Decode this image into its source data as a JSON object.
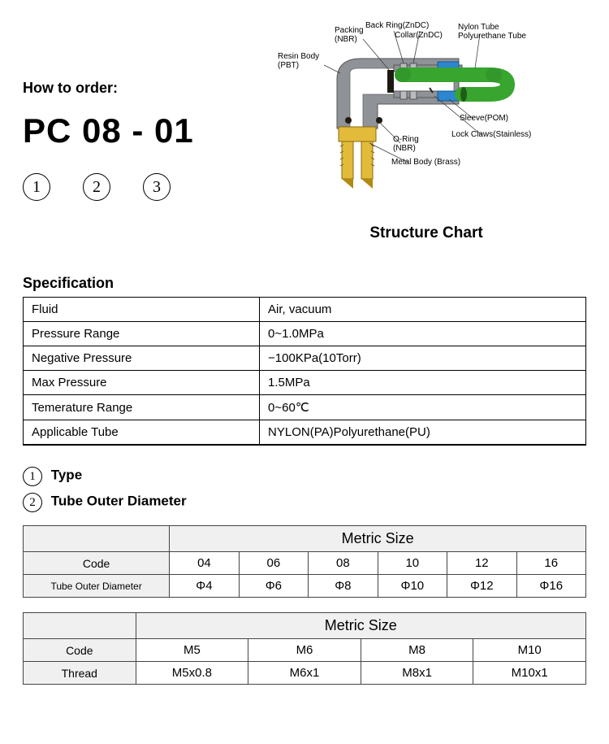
{
  "header": {
    "how_to_order": "How to order:",
    "order_code": "PC 08 - 01",
    "circle_1": "1",
    "circle_2": "2",
    "circle_3": "3"
  },
  "structure": {
    "caption": "Structure Chart",
    "labels": {
      "resin_body": "Resin Body\n(PBT)",
      "packing": "Packing\n(NBR)",
      "back_ring": "Back Ring(ZnDC)",
      "collar": "Collar(ZnDC)",
      "nylon_tube": "Nylon Tube\nPolyurethane Tube",
      "sleeve": "Sleeve(POM)",
      "lock_claws": "Lock Claws(Stainless)",
      "o_ring": "O-Ring\n(NBR)",
      "metal_body": "Metal Body (Brass)"
    },
    "colors": {
      "body_grey": "#8f9297",
      "brass": "#e2bb3a",
      "brass_dark": "#b08a12",
      "tube_green": "#37a52e",
      "tube_green_dark": "#2e8026",
      "sleeve_blue": "#2c86d0",
      "oring": "#201a14",
      "label_line": "#404040"
    }
  },
  "spec": {
    "title": "Specification",
    "rows": [
      {
        "k": "Fluid",
        "v": "Air, vacuum"
      },
      {
        "k": "Pressure Range",
        "v": "0~1.0MPa"
      },
      {
        "k": "Negative Pressure",
        "v": "−100KPa(10Torr)"
      },
      {
        "k": "Max Pressure",
        "v": "1.5MPa"
      },
      {
        "k": "Temerature Range",
        "v": "0~60℃"
      },
      {
        "k": "Applicable Tube",
        "v": "NYLON(PA)Polyurethane(PU)"
      }
    ]
  },
  "type_section": {
    "num": "1",
    "title": "Type"
  },
  "diam_section": {
    "num": "2",
    "title": "Tube Outer Diameter"
  },
  "table1": {
    "group": "Metric Size",
    "row_label_code": "Code",
    "row_label_diam": "Tube Outer Diameter",
    "codes": [
      "04",
      "06",
      "08",
      "10",
      "12",
      "16"
    ],
    "diams": [
      "Φ4",
      "Φ6",
      "Φ8",
      "Φ10",
      "Φ12",
      "Φ16"
    ],
    "col_left_width_pct": 26,
    "data_cols": 6
  },
  "table2": {
    "group": "Metric Size",
    "row_label_code": "Code",
    "row_label_thread": "Thread",
    "codes": [
      "M5",
      "M6",
      "M8",
      "M10"
    ],
    "threads": [
      "M5x0.8",
      "M6x1",
      "M8x1",
      "M10x1"
    ],
    "col_left_width_pct": 20,
    "data_cols": 4
  }
}
